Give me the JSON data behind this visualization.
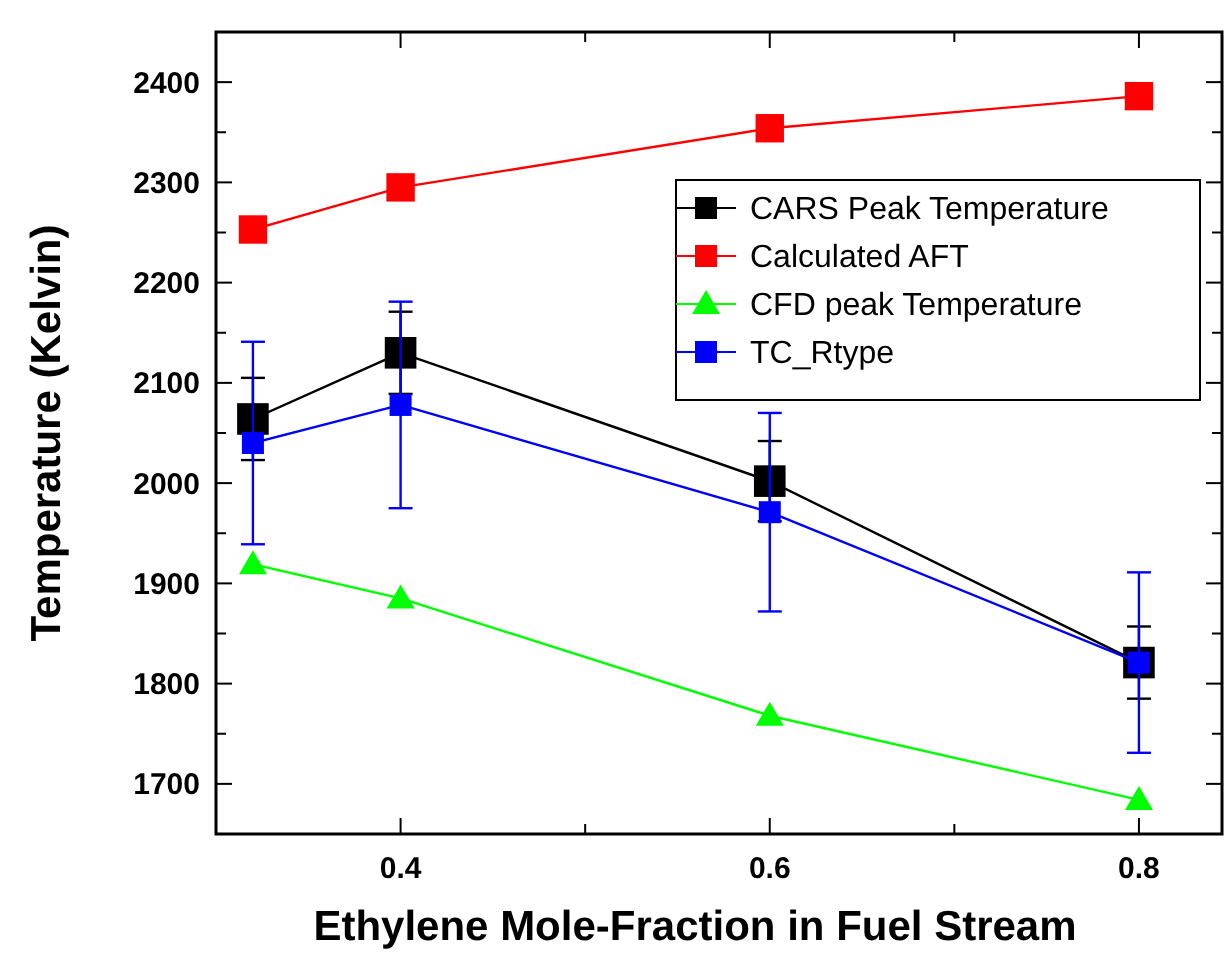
{
  "chart_data": {
    "type": "line",
    "xlabel": "Ethylene Mole-Fraction in Fuel Stream",
    "ylabel": "Temperature (Kelvin)",
    "x": [
      0.32,
      0.4,
      0.6,
      0.8
    ],
    "xlim": [
      0.3,
      0.845
    ],
    "xticks": [
      0.4,
      {
        "value": 0.5,
        "label": null
      },
      0.6,
      {
        "value": 0.7,
        "label": null
      },
      0.8
    ],
    "ylim": [
      1650,
      2450
    ],
    "yticks": [
      1700,
      {
        "value": 1750,
        "label": null
      },
      1800,
      {
        "value": 1850,
        "label": null
      },
      1900,
      {
        "value": 1950,
        "label": null
      },
      2000,
      {
        "value": 2050,
        "label": null
      },
      2100,
      {
        "value": 2150,
        "label": null
      },
      2200,
      {
        "value": 2250,
        "label": null
      },
      2300,
      {
        "value": 2350,
        "label": null
      },
      2400
    ],
    "grid": false,
    "legend": "top right",
    "marker": "square",
    "line_style": "solid",
    "series": [
      {
        "name": "CARS Peak Temperature",
        "color": "#000000",
        "values": [
          2064,
          2130,
          2002,
          1821
        ],
        "errors": [
          41,
          41,
          40,
          36
        ]
      },
      {
        "name": "Calculated AFT",
        "color": "#ff0000",
        "values": [
          2253,
          2295,
          2354,
          2386
        ]
      },
      {
        "name": "CFD peak Temperature",
        "color": "#00ff00",
        "marker": "triangle",
        "values": [
          1919,
          1885,
          1768,
          1684
        ]
      },
      {
        "name": "TC_Rtype",
        "color": "#0000ff",
        "values": [
          2040,
          2078,
          1971,
          1821
        ],
        "errors": [
          101,
          103,
          99,
          90
        ]
      }
    ]
  }
}
